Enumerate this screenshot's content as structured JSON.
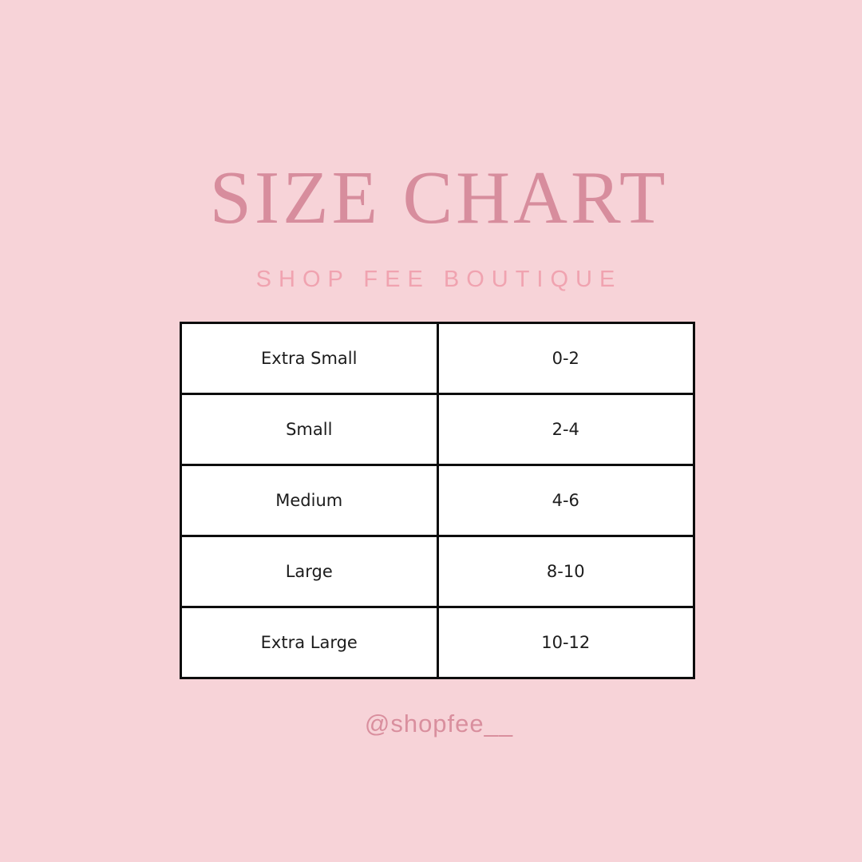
{
  "header": {
    "title": "SIZE CHART",
    "subtitle": "SHOP FEE BOUTIQUE"
  },
  "footer": {
    "handle": "@shopfee__"
  },
  "chart_data": {
    "type": "table",
    "title": "SIZE CHART",
    "subtitle": "SHOP FEE BOUTIQUE",
    "rows": [
      [
        "Extra Small",
        "0-2"
      ],
      [
        "Small",
        "2-4"
      ],
      [
        "Medium",
        "4-6"
      ],
      [
        "Large",
        "8-10"
      ],
      [
        "Extra Large",
        "10-12"
      ]
    ]
  },
  "colors": {
    "background": "#f7d3d8",
    "title": "#d78d9d",
    "subtitle": "#f0a3b0",
    "handle": "#d98f9e",
    "table_border": "#0d0d0d",
    "cell_background": "#ffffff",
    "cell_text": "#1c1c1c"
  }
}
